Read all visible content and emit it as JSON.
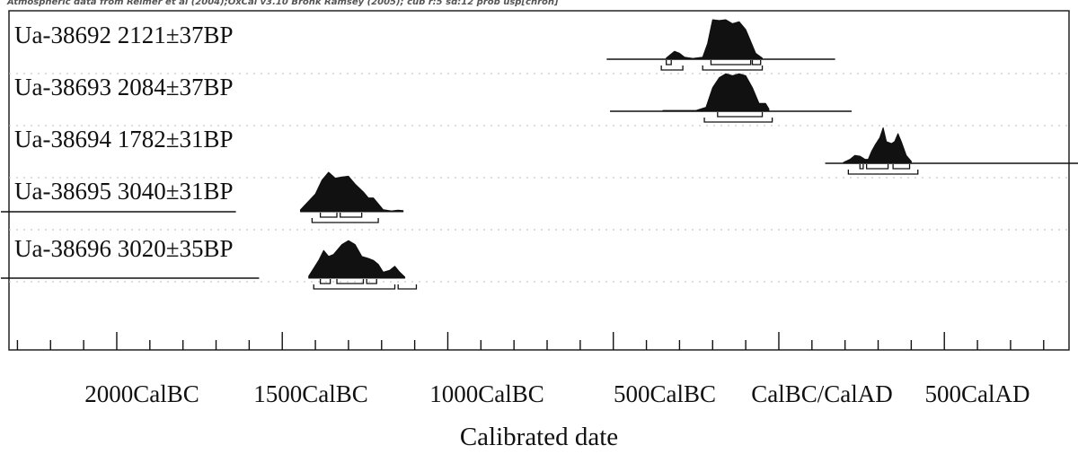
{
  "caption": "Atmospheric data from Reimer et al (2004);OxCal v3.10 Bronk Ramsey (2005); cub r:5 sd:12 prob usp[chron]",
  "chart_data": {
    "type": "multiple-plot",
    "xlabel": "Calibrated date",
    "x_unit": "calendar year (negative = BC)",
    "xlim": [
      -2350,
      1100
    ],
    "major_ticks": [
      -2000,
      -1500,
      -1000,
      -500,
      0,
      500,
      1000
    ],
    "minor_tick_step": 100,
    "tick_labels": [
      {
        "value": -2000,
        "label": "2000CalBC"
      },
      {
        "value": -1500,
        "label": "1500CalBC"
      },
      {
        "value": -1000,
        "label": "1000CalBC"
      },
      {
        "value": -500,
        "label": "500CalBC"
      },
      {
        "value": 0,
        "label": "CalBC/CalAD"
      },
      {
        "value": 500,
        "label": "500CalAD"
      }
    ],
    "grid": "dotted horizontal guides between rows",
    "series": [
      {
        "name": "Ua-38692  2121±37BP",
        "range": [
          -520,
          170
        ],
        "prob": [
          [
            -340,
            0.03
          ],
          [
            -315,
            0.2
          ],
          [
            -300,
            0.15
          ],
          [
            -285,
            0.05
          ],
          [
            -260,
            0.02
          ],
          [
            -230,
            0.05
          ],
          [
            -215,
            0.4
          ],
          [
            -200,
            1.0
          ],
          [
            -180,
            0.98
          ],
          [
            -160,
            1.0
          ],
          [
            -140,
            0.9
          ],
          [
            -120,
            0.95
          ],
          [
            -100,
            0.75
          ],
          [
            -85,
            0.45
          ],
          [
            -70,
            0.15
          ],
          [
            -50,
            0.03
          ]
        ],
        "hpd_68": [
          [
            -340,
            -325
          ],
          [
            -205,
            -85
          ],
          [
            -80,
            -55
          ]
        ],
        "hpd_95": [
          [
            -355,
            -290
          ],
          [
            -230,
            -50
          ]
        ]
      },
      {
        "name": "Ua-38693  2084±37BP",
        "range": [
          -510,
          220
        ],
        "prob": [
          [
            -350,
            0.02
          ],
          [
            -250,
            0.02
          ],
          [
            -220,
            0.1
          ],
          [
            -200,
            0.6
          ],
          [
            -180,
            0.85
          ],
          [
            -160,
            0.95
          ],
          [
            -140,
            0.9
          ],
          [
            -120,
            0.95
          ],
          [
            -100,
            0.9
          ],
          [
            -80,
            0.6
          ],
          [
            -60,
            0.2
          ],
          [
            -40,
            0.2
          ],
          [
            -30,
            0.06
          ]
        ],
        "hpd_68": [
          [
            -185,
            -50
          ]
        ],
        "hpd_95": [
          [
            -225,
            -20
          ]
        ]
      },
      {
        "name": "Ua-38694  1782±31BP",
        "range": [
          140,
          1060
        ],
        "prob": [
          [
            195,
            0.02
          ],
          [
            215,
            0.1
          ],
          [
            230,
            0.2
          ],
          [
            245,
            0.18
          ],
          [
            260,
            0.1
          ],
          [
            270,
            0.1
          ],
          [
            280,
            0.3
          ],
          [
            290,
            0.45
          ],
          [
            305,
            0.65
          ],
          [
            315,
            0.9
          ],
          [
            325,
            0.55
          ],
          [
            340,
            0.5
          ],
          [
            350,
            0.55
          ],
          [
            360,
            0.75
          ],
          [
            370,
            0.55
          ],
          [
            385,
            0.2
          ],
          [
            400,
            0.05
          ]
        ],
        "hpd_68": [
          [
            245,
            255
          ],
          [
            265,
            330
          ],
          [
            345,
            395
          ]
        ],
        "hpd_95": [
          [
            210,
            420
          ]
        ]
      },
      {
        "name": "Ua-38695  3040±31BP",
        "range": [
          -2350,
          -1640
        ],
        "prob": [
          [
            -1445,
            0.05
          ],
          [
            -1400,
            0.45
          ],
          [
            -1380,
            0.8
          ],
          [
            -1360,
            1.0
          ],
          [
            -1340,
            0.85
          ],
          [
            -1320,
            0.88
          ],
          [
            -1300,
            0.9
          ],
          [
            -1280,
            0.7
          ],
          [
            -1255,
            0.5
          ],
          [
            -1240,
            0.35
          ],
          [
            -1225,
            0.35
          ],
          [
            -1210,
            0.2
          ],
          [
            -1195,
            0.05
          ],
          [
            -1170,
            0.02
          ],
          [
            -1150,
            0.04
          ],
          [
            -1135,
            0.03
          ]
        ],
        "hpd_68": [
          [
            -1385,
            -1335
          ],
          [
            -1325,
            -1260
          ]
        ],
        "hpd_95": [
          [
            -1410,
            -1210
          ]
        ]
      },
      {
        "name": "Ua-38696  3020±35BP",
        "range": [
          -2350,
          -1570
        ],
        "prob": [
          [
            -1420,
            0.05
          ],
          [
            -1390,
            0.45
          ],
          [
            -1375,
            0.7
          ],
          [
            -1360,
            0.55
          ],
          [
            -1345,
            0.6
          ],
          [
            -1320,
            0.85
          ],
          [
            -1300,
            0.95
          ],
          [
            -1280,
            0.85
          ],
          [
            -1260,
            0.55
          ],
          [
            -1240,
            0.5
          ],
          [
            -1225,
            0.45
          ],
          [
            -1210,
            0.35
          ],
          [
            -1195,
            0.15
          ],
          [
            -1175,
            0.2
          ],
          [
            -1160,
            0.3
          ],
          [
            -1145,
            0.15
          ],
          [
            -1130,
            0.03
          ]
        ],
        "hpd_68": [
          [
            -1385,
            -1355
          ],
          [
            -1335,
            -1255
          ],
          [
            -1245,
            -1215
          ]
        ],
        "hpd_95": [
          [
            -1405,
            -1160
          ],
          [
            -1150,
            -1095
          ]
        ]
      }
    ]
  }
}
